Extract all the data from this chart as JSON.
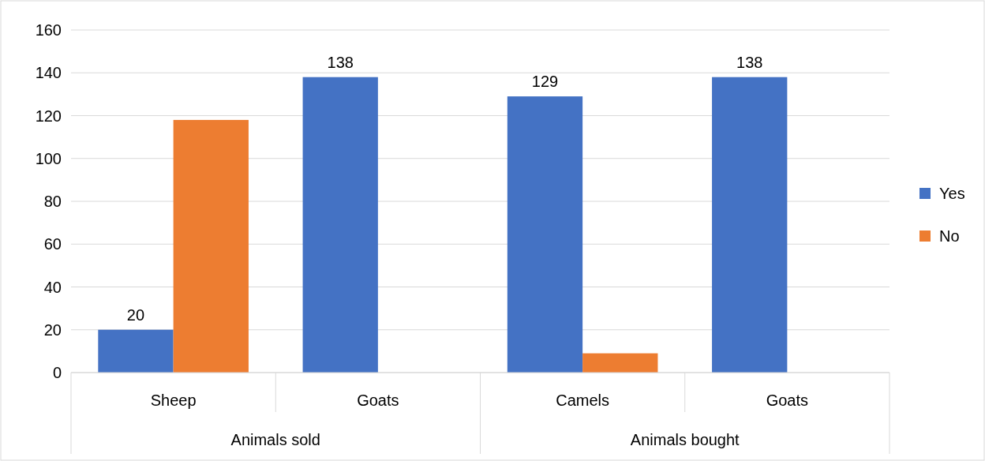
{
  "chart_data": {
    "type": "bar",
    "categories": [
      "Sheep",
      "Goats",
      "Camels",
      "Goats"
    ],
    "series": [
      {
        "name": "Yes",
        "color": "#4472c4",
        "values": [
          20,
          138,
          129,
          138
        ],
        "value_labels": [
          "20",
          "138",
          "129",
          "138"
        ]
      },
      {
        "name": "No",
        "color": "#ed7d31",
        "values": [
          118,
          null,
          9,
          null
        ]
      }
    ],
    "ylim": [
      0,
      160
    ],
    "yticks": [
      0,
      20,
      40,
      60,
      80,
      100,
      120,
      140,
      160
    ],
    "grid": "y",
    "legend": "right",
    "annotations": [
      "Animals sold",
      "Animals bought"
    ]
  }
}
